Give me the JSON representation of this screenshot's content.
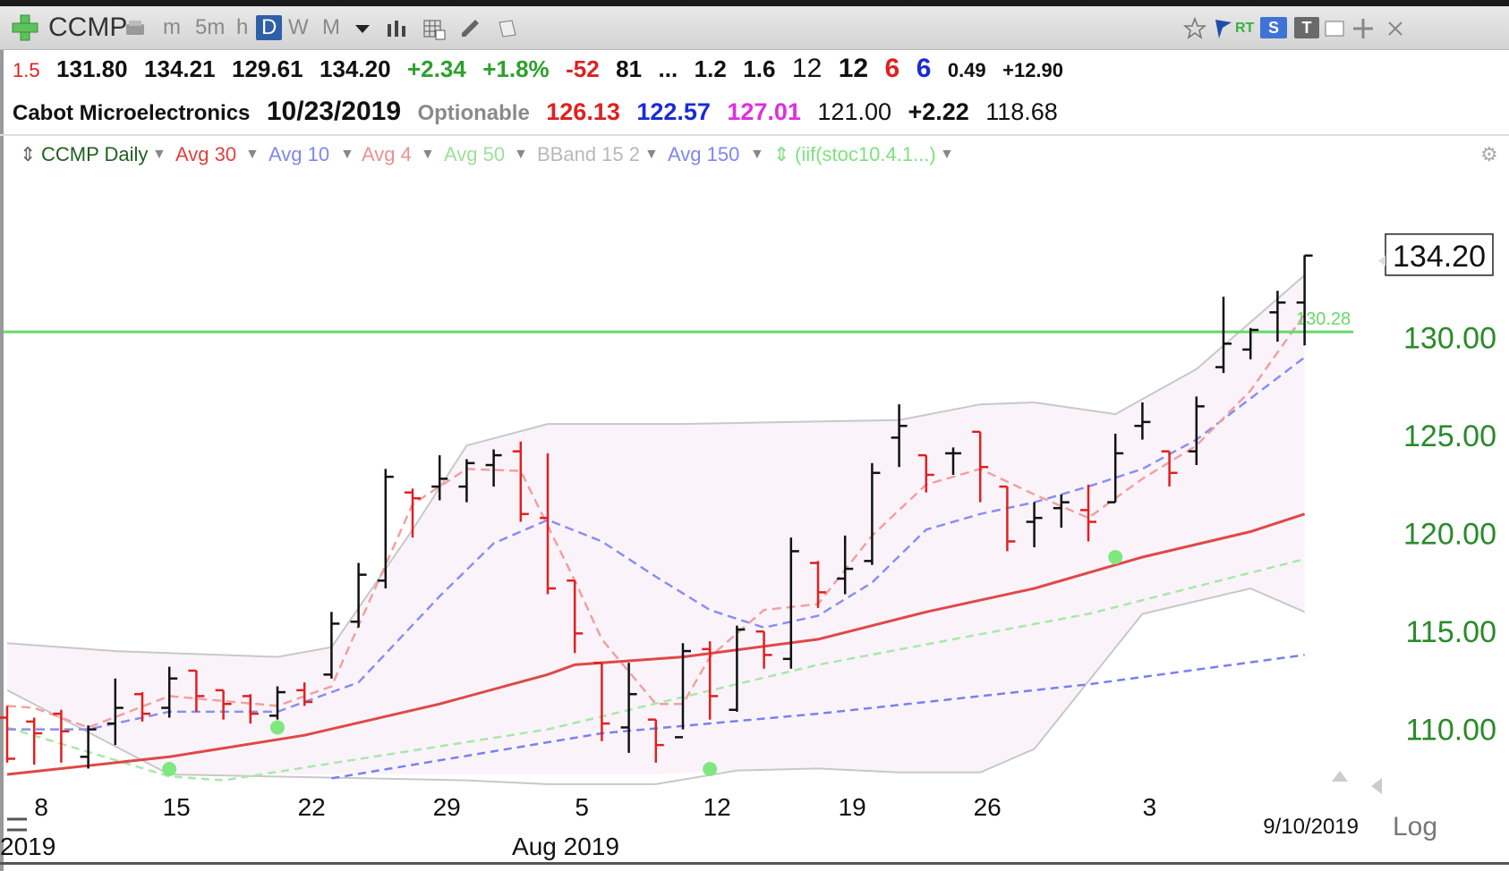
{
  "toolbar": {
    "symbol": "CCMP",
    "timeframes": [
      "m",
      "5m",
      "h",
      "D",
      "W",
      "M"
    ],
    "active_timeframe": "D",
    "rt_label": "RT",
    "s_label": "S",
    "t_label": "T"
  },
  "quote": {
    "ratio": "1.5",
    "open": "131.80",
    "high": "134.21",
    "low": "129.61",
    "close": "134.20",
    "change": "+2.34",
    "pct_change": "+1.8%",
    "v1": "-52",
    "v2": "81",
    "ellipsis": "...",
    "v3": "1.2",
    "v4": "1.6",
    "v5": "12",
    "v6": "12",
    "v7": "6",
    "v8": "6",
    "v9": "0.49",
    "v10": "+12.90"
  },
  "info": {
    "company": "Cabot Microelectronics",
    "date": "10/23/2019",
    "optionable": "Optionable",
    "p1": "126.13",
    "p2": "122.57",
    "p3": "127.01",
    "p4": "121.00",
    "p5": "+2.22",
    "p6": "118.68"
  },
  "indicators": [
    {
      "label": "CCMP Daily",
      "color": "#1f5f1f"
    },
    {
      "label": "Avg 30",
      "color": "#e04040"
    },
    {
      "label": "Avg 10",
      "color": "#7f86f0"
    },
    {
      "label": "Avg 4",
      "color": "#ef8f8f"
    },
    {
      "label": "Avg 50",
      "color": "#9be09b"
    },
    {
      "label": "BBand 15 2",
      "color": "#b8b8b8"
    },
    {
      "label": "Avg 150",
      "color": "#7f86f0"
    },
    {
      "label": "(iif(stoc10.4.1...)",
      "color": "#7fe07f"
    }
  ],
  "colors": {
    "up_bar": "#111111",
    "down_bar": "#e02020",
    "avg30": "#e04848",
    "avg10": "#8a8ff0",
    "avg4": "#f2a0a0",
    "avg50": "#a8e8a8",
    "avg150": "#7a80f0",
    "bband": "#c8c8c8",
    "bband_fill": "#faf4fa",
    "hline": "#66d966",
    "dot": "#7ee87e",
    "axis_text": "#2a8a2a"
  },
  "chart_data": {
    "type": "ohlc",
    "price_axis": {
      "ticks": [
        "130.00",
        "125.00",
        "120.00",
        "115.00",
        "110.00"
      ],
      "ylim": [
        107.7,
        138.3
      ]
    },
    "last_price_label": "134.20",
    "hline": {
      "value": 130.3,
      "label": "130.28"
    },
    "x_ticks": [
      "8",
      "15",
      "22",
      "29",
      "5",
      "12",
      "19",
      "26",
      "3"
    ],
    "x_ticks_dates": [
      "2019-07-08",
      "2019-07-15",
      "2019-07-22",
      "2019-07-29",
      "2019-08-05",
      "2019-08-12",
      "2019-08-19",
      "2019-08-26",
      "2019-09-03"
    ],
    "month_label": "Aug 2019",
    "year_label_partial": "2019",
    "cursor_date": "9/10/2019",
    "log_label": "Log",
    "bars": [
      {
        "date": "2019-07-05",
        "o": 110.6,
        "h": 111.2,
        "l": 108.3,
        "c": 108.5
      },
      {
        "date": "2019-07-08",
        "o": 110.4,
        "h": 110.6,
        "l": 108.2,
        "c": 109.8
      },
      {
        "date": "2019-07-09",
        "o": 110.8,
        "h": 111.0,
        "l": 108.3,
        "c": 109.9
      },
      {
        "date": "2019-07-10",
        "o": 108.6,
        "h": 110.2,
        "l": 108.0,
        "c": 110.0
      },
      {
        "date": "2019-07-11",
        "o": 110.3,
        "h": 112.6,
        "l": 109.2,
        "c": 111.1
      },
      {
        "date": "2019-07-12",
        "o": 111.8,
        "h": 111.9,
        "l": 110.4,
        "c": 110.8
      },
      {
        "date": "2019-07-15",
        "o": 111.1,
        "h": 113.2,
        "l": 110.6,
        "c": 112.6
      },
      {
        "date": "2019-07-16",
        "o": 113.0,
        "h": 113.0,
        "l": 110.9,
        "c": 111.7
      },
      {
        "date": "2019-07-17",
        "o": 112.0,
        "h": 112.0,
        "l": 110.5,
        "c": 111.3
      },
      {
        "date": "2019-07-18",
        "o": 111.7,
        "h": 111.8,
        "l": 110.3,
        "c": 110.8
      },
      {
        "date": "2019-07-19",
        "o": 110.7,
        "h": 112.2,
        "l": 110.5,
        "c": 111.9
      },
      {
        "date": "2019-07-22",
        "o": 112.0,
        "h": 112.4,
        "l": 111.2,
        "c": 111.4
      },
      {
        "date": "2019-07-23",
        "o": 112.8,
        "h": 116.0,
        "l": 112.6,
        "c": 115.4
      },
      {
        "date": "2019-07-24",
        "o": 115.5,
        "h": 118.5,
        "l": 115.2,
        "c": 117.9
      },
      {
        "date": "2019-07-25",
        "o": 117.6,
        "h": 123.3,
        "l": 117.2,
        "c": 122.9
      },
      {
        "date": "2019-07-26",
        "o": 122.1,
        "h": 122.3,
        "l": 119.8,
        "c": 121.8
      },
      {
        "date": "2019-07-29",
        "o": 122.4,
        "h": 124.0,
        "l": 121.7,
        "c": 122.8
      },
      {
        "date": "2019-07-30",
        "o": 122.4,
        "h": 123.8,
        "l": 121.6,
        "c": 123.6
      },
      {
        "date": "2019-07-31",
        "o": 123.5,
        "h": 124.3,
        "l": 122.4,
        "c": 124.0
      },
      {
        "date": "2019-08-01",
        "o": 124.2,
        "h": 124.7,
        "l": 120.6,
        "c": 121.0
      },
      {
        "date": "2019-08-02",
        "o": 120.8,
        "h": 124.1,
        "l": 116.9,
        "c": 117.2
      },
      {
        "date": "2019-08-05",
        "o": 117.6,
        "h": 117.6,
        "l": 113.9,
        "c": 114.9
      },
      {
        "date": "2019-08-06",
        "o": 113.4,
        "h": 113.4,
        "l": 109.4,
        "c": 110.3
      },
      {
        "date": "2019-08-07",
        "o": 110.1,
        "h": 113.4,
        "l": 108.8,
        "c": 111.8
      },
      {
        "date": "2019-08-08",
        "o": 110.5,
        "h": 110.5,
        "l": 108.3,
        "c": 109.2
      },
      {
        "date": "2019-08-09",
        "o": 109.6,
        "h": 114.4,
        "l": 110.0,
        "c": 114.0
      },
      {
        "date": "2019-08-12",
        "o": 114.1,
        "h": 114.5,
        "l": 110.5,
        "c": 111.7
      },
      {
        "date": "2019-08-13",
        "o": 111.0,
        "h": 115.3,
        "l": 110.9,
        "c": 115.1
      },
      {
        "date": "2019-08-14",
        "o": 115.0,
        "h": 115.0,
        "l": 113.1,
        "c": 113.8
      },
      {
        "date": "2019-08-15",
        "o": 113.6,
        "h": 119.8,
        "l": 113.1,
        "c": 119.1
      },
      {
        "date": "2019-08-16",
        "o": 118.5,
        "h": 118.6,
        "l": 116.2,
        "c": 117.0
      },
      {
        "date": "2019-08-19",
        "o": 117.7,
        "h": 119.9,
        "l": 116.9,
        "c": 118.2
      },
      {
        "date": "2019-08-20",
        "o": 118.6,
        "h": 123.6,
        "l": 118.4,
        "c": 123.1
      },
      {
        "date": "2019-08-21",
        "o": 124.9,
        "h": 126.6,
        "l": 123.4,
        "c": 125.5
      },
      {
        "date": "2019-08-22",
        "o": 124.0,
        "h": 124.0,
        "l": 122.1,
        "c": 123.0
      },
      {
        "date": "2019-08-23",
        "o": 124.1,
        "h": 124.4,
        "l": 123.0,
        "c": 124.1
      },
      {
        "date": "2019-08-26",
        "o": 125.2,
        "h": 125.2,
        "l": 121.6,
        "c": 123.4
      },
      {
        "date": "2019-08-27",
        "o": 122.4,
        "h": 122.4,
        "l": 119.1,
        "c": 119.6
      },
      {
        "date": "2019-08-28",
        "o": 120.6,
        "h": 121.6,
        "l": 119.3,
        "c": 120.8
      },
      {
        "date": "2019-08-29",
        "o": 121.3,
        "h": 122.0,
        "l": 120.3,
        "c": 121.6
      },
      {
        "date": "2019-08-30",
        "o": 121.2,
        "h": 122.5,
        "l": 119.6,
        "c": 120.6
      },
      {
        "date": "2019-09-02",
        "o": 121.6,
        "h": 125.1,
        "l": 121.6,
        "c": 124.1
      },
      {
        "date": "2019-09-03",
        "o": 125.5,
        "h": 126.7,
        "l": 124.8,
        "c": 125.7
      },
      {
        "date": "2019-09-04",
        "o": 124.2,
        "h": 124.2,
        "l": 122.4,
        "c": 123.1
      },
      {
        "date": "2019-09-05",
        "o": 124.2,
        "h": 127.0,
        "l": 123.5,
        "c": 126.5
      },
      {
        "date": "2019-09-06",
        "o": 128.5,
        "h": 132.1,
        "l": 128.2,
        "c": 129.7
      },
      {
        "date": "2019-09-07",
        "o": 129.4,
        "h": 130.5,
        "l": 128.9,
        "c": 130.4
      },
      {
        "date": "2019-09-09",
        "o": 131.3,
        "h": 132.4,
        "l": 129.8,
        "c": 131.8
      },
      {
        "date": "2019-09-10",
        "o": 131.8,
        "h": 134.21,
        "l": 129.61,
        "c": 134.2
      }
    ],
    "avg30": [
      [
        0,
        107.7
      ],
      [
        6,
        108.6
      ],
      [
        11,
        109.7
      ],
      [
        16,
        111.3
      ],
      [
        20,
        112.8
      ],
      [
        21,
        113.3
      ],
      [
        25,
        113.7
      ],
      [
        30,
        114.6
      ],
      [
        34,
        116.0
      ],
      [
        38,
        117.2
      ],
      [
        42,
        118.8
      ],
      [
        46,
        120.1
      ],
      [
        48,
        121.0
      ]
    ],
    "avg10": [
      [
        0,
        110.0
      ],
      [
        3,
        110.0
      ],
      [
        6,
        110.9
      ],
      [
        10,
        110.9
      ],
      [
        13,
        112.4
      ],
      [
        16,
        116.8
      ],
      [
        18,
        119.5
      ],
      [
        20,
        120.7
      ],
      [
        22,
        119.6
      ],
      [
        24,
        117.8
      ],
      [
        26,
        116.1
      ],
      [
        28,
        115.2
      ],
      [
        30,
        115.8
      ],
      [
        32,
        117.5
      ],
      [
        34,
        120.2
      ],
      [
        36,
        121.0
      ],
      [
        38,
        121.6
      ],
      [
        40,
        122.4
      ],
      [
        42,
        123.3
      ],
      [
        44,
        124.8
      ],
      [
        48,
        129.0
      ]
    ],
    "avg4": [
      [
        0,
        111.2
      ],
      [
        1,
        111.1
      ],
      [
        3,
        110.1
      ],
      [
        6,
        111.7
      ],
      [
        10,
        111.2
      ],
      [
        12,
        112.2
      ],
      [
        15,
        121.5
      ],
      [
        17,
        123.3
      ],
      [
        19,
        123.2
      ],
      [
        21,
        117.6
      ],
      [
        22,
        114.6
      ],
      [
        24,
        111.3
      ],
      [
        25,
        111.3
      ],
      [
        26,
        113.7
      ],
      [
        28,
        116.1
      ],
      [
        30,
        116.4
      ],
      [
        32,
        119.9
      ],
      [
        34,
        122.5
      ],
      [
        36,
        123.3
      ],
      [
        38,
        122.0
      ],
      [
        40,
        120.8
      ],
      [
        42,
        122.8
      ],
      [
        44,
        124.5
      ],
      [
        46,
        127.3
      ],
      [
        48,
        131.2
      ]
    ],
    "avg50": [
      [
        0,
        110.1
      ],
      [
        6,
        107.6
      ],
      [
        8,
        107.4
      ],
      [
        20,
        110.0
      ],
      [
        30,
        113.3
      ],
      [
        40,
        115.9
      ],
      [
        48,
        118.7
      ]
    ],
    "avg150": [
      [
        12,
        107.5
      ],
      [
        22,
        109.8
      ],
      [
        30,
        110.8
      ],
      [
        40,
        112.3
      ],
      [
        48,
        113.8
      ]
    ],
    "bband_upper": [
      [
        0,
        114.4
      ],
      [
        4,
        114.0
      ],
      [
        10,
        113.7
      ],
      [
        12,
        114.2
      ],
      [
        15,
        120.2
      ],
      [
        17,
        124.5
      ],
      [
        20,
        125.6
      ],
      [
        25,
        125.6
      ],
      [
        33,
        125.8
      ],
      [
        36,
        126.6
      ],
      [
        38,
        126.7
      ],
      [
        41,
        126.1
      ],
      [
        44,
        128.4
      ],
      [
        48,
        133.2
      ]
    ],
    "bband_lower": [
      [
        0,
        112.0
      ],
      [
        6,
        107.7
      ],
      [
        17,
        107.4
      ],
      [
        20,
        107.2
      ],
      [
        24,
        107.2
      ],
      [
        27,
        107.9
      ],
      [
        30,
        108.0
      ],
      [
        33,
        107.8
      ],
      [
        36,
        107.8
      ],
      [
        38,
        109.0
      ],
      [
        42,
        115.9
      ],
      [
        46,
        117.2
      ],
      [
        48,
        116.0
      ]
    ],
    "dots": [
      [
        6,
        107.6
      ],
      [
        10,
        110.1
      ],
      [
        26,
        107.9
      ],
      [
        41,
        118.8
      ]
    ]
  }
}
